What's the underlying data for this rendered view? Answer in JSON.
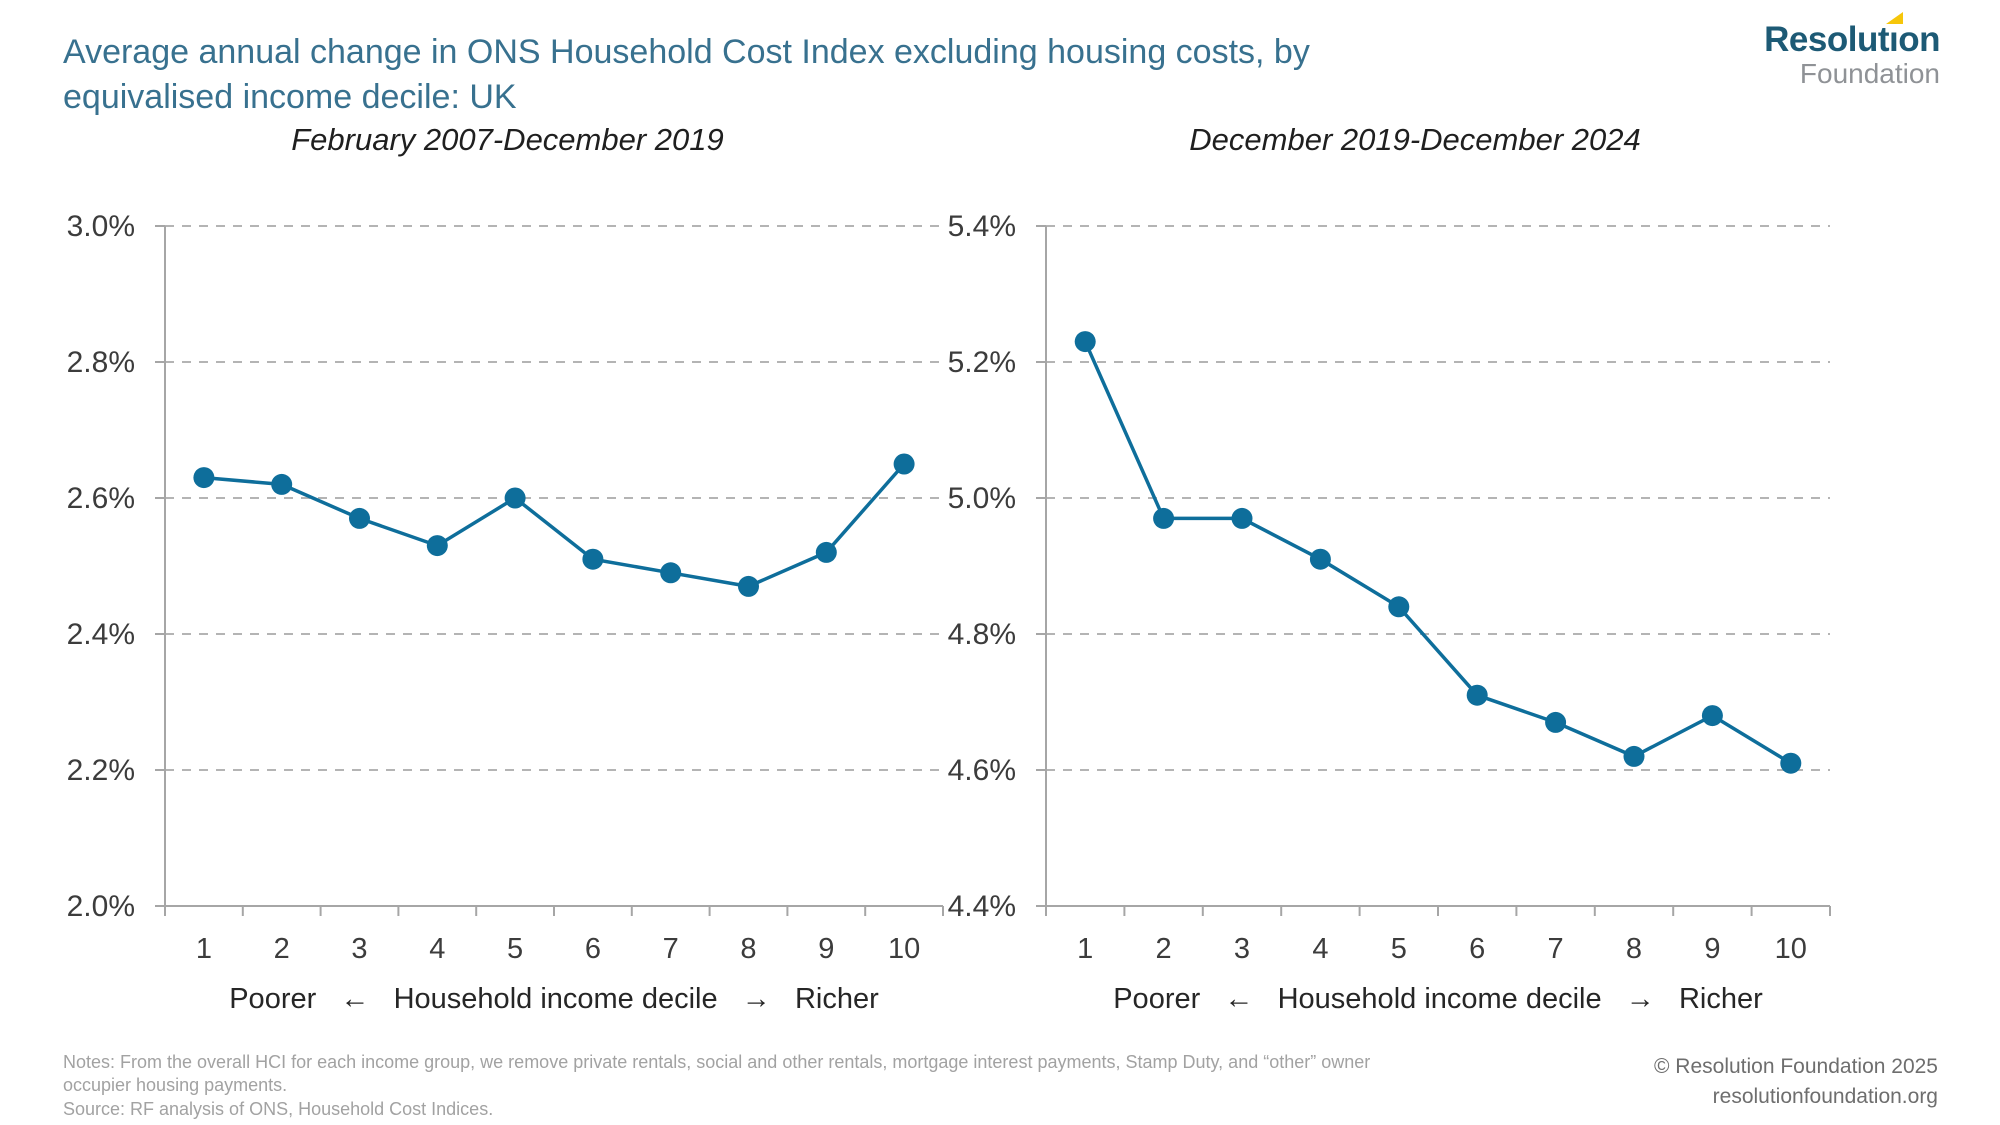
{
  "header": {
    "title_line1": "Average annual change in ONS Household Cost Index excluding housing costs, by",
    "title_line2": "equivalised income decile: UK",
    "title_color": "#38718f"
  },
  "logo": {
    "word1_part1": "Resolut",
    "word1_accent_char": "ı",
    "word1_part2": "on",
    "word2": "Foundation",
    "brand_blue": "#1d5a75",
    "brand_yellow": "#f6c60a",
    "gray": "#8f9296"
  },
  "colors": {
    "series": "#0e6e9b",
    "gridline": "#b4b4b4",
    "axis": "#a6a6a6",
    "tick_label": "#3c3c3c",
    "chart_title": "#1f1f1f",
    "caption": "#262626"
  },
  "chart_data": [
    {
      "type": "line",
      "title": "February 2007-December 2019",
      "categories": [
        "1",
        "2",
        "3",
        "4",
        "5",
        "6",
        "7",
        "8",
        "9",
        "10"
      ],
      "values": [
        2.63,
        2.62,
        2.57,
        2.53,
        2.6,
        2.51,
        2.49,
        2.47,
        2.52,
        2.65
      ],
      "ylim": [
        2.0,
        3.0
      ],
      "ytick_labels_top_to_bottom": [
        "3.0%",
        "2.8%",
        "2.6%",
        "2.4%",
        "2.2%",
        "2.0%"
      ],
      "xlabel": "Poorer   ←   Household income decile   →   Richer",
      "grid": "horizontal-dashed",
      "marker": "circle",
      "legend": "none"
    },
    {
      "type": "line",
      "title": "December 2019-December 2024",
      "categories": [
        "1",
        "2",
        "3",
        "4",
        "5",
        "6",
        "7",
        "8",
        "9",
        "10"
      ],
      "values": [
        5.23,
        4.97,
        4.97,
        4.91,
        4.84,
        4.71,
        4.67,
        4.62,
        4.68,
        4.61
      ],
      "ylim": [
        4.4,
        5.4
      ],
      "ytick_labels_top_to_bottom": [
        "5.4%",
        "5.2%",
        "5.0%",
        "4.8%",
        "4.6%",
        "4.4%"
      ],
      "xlabel": "Poorer   ←   Household income decile   →   Richer",
      "grid": "horizontal-dashed",
      "marker": "circle",
      "legend": "none"
    }
  ],
  "notes": {
    "line1": "Notes: From the overall HCI for each income group, we remove private rentals, social and other rentals, mortgage interest payments, Stamp Duty, and “other” owner",
    "line2": "occupier housing payments.",
    "line3": "Source: RF analysis of ONS, Household Cost Indices."
  },
  "footer": {
    "copyright": "© Resolution Foundation 2025",
    "website": "resolutionfoundation.org"
  }
}
